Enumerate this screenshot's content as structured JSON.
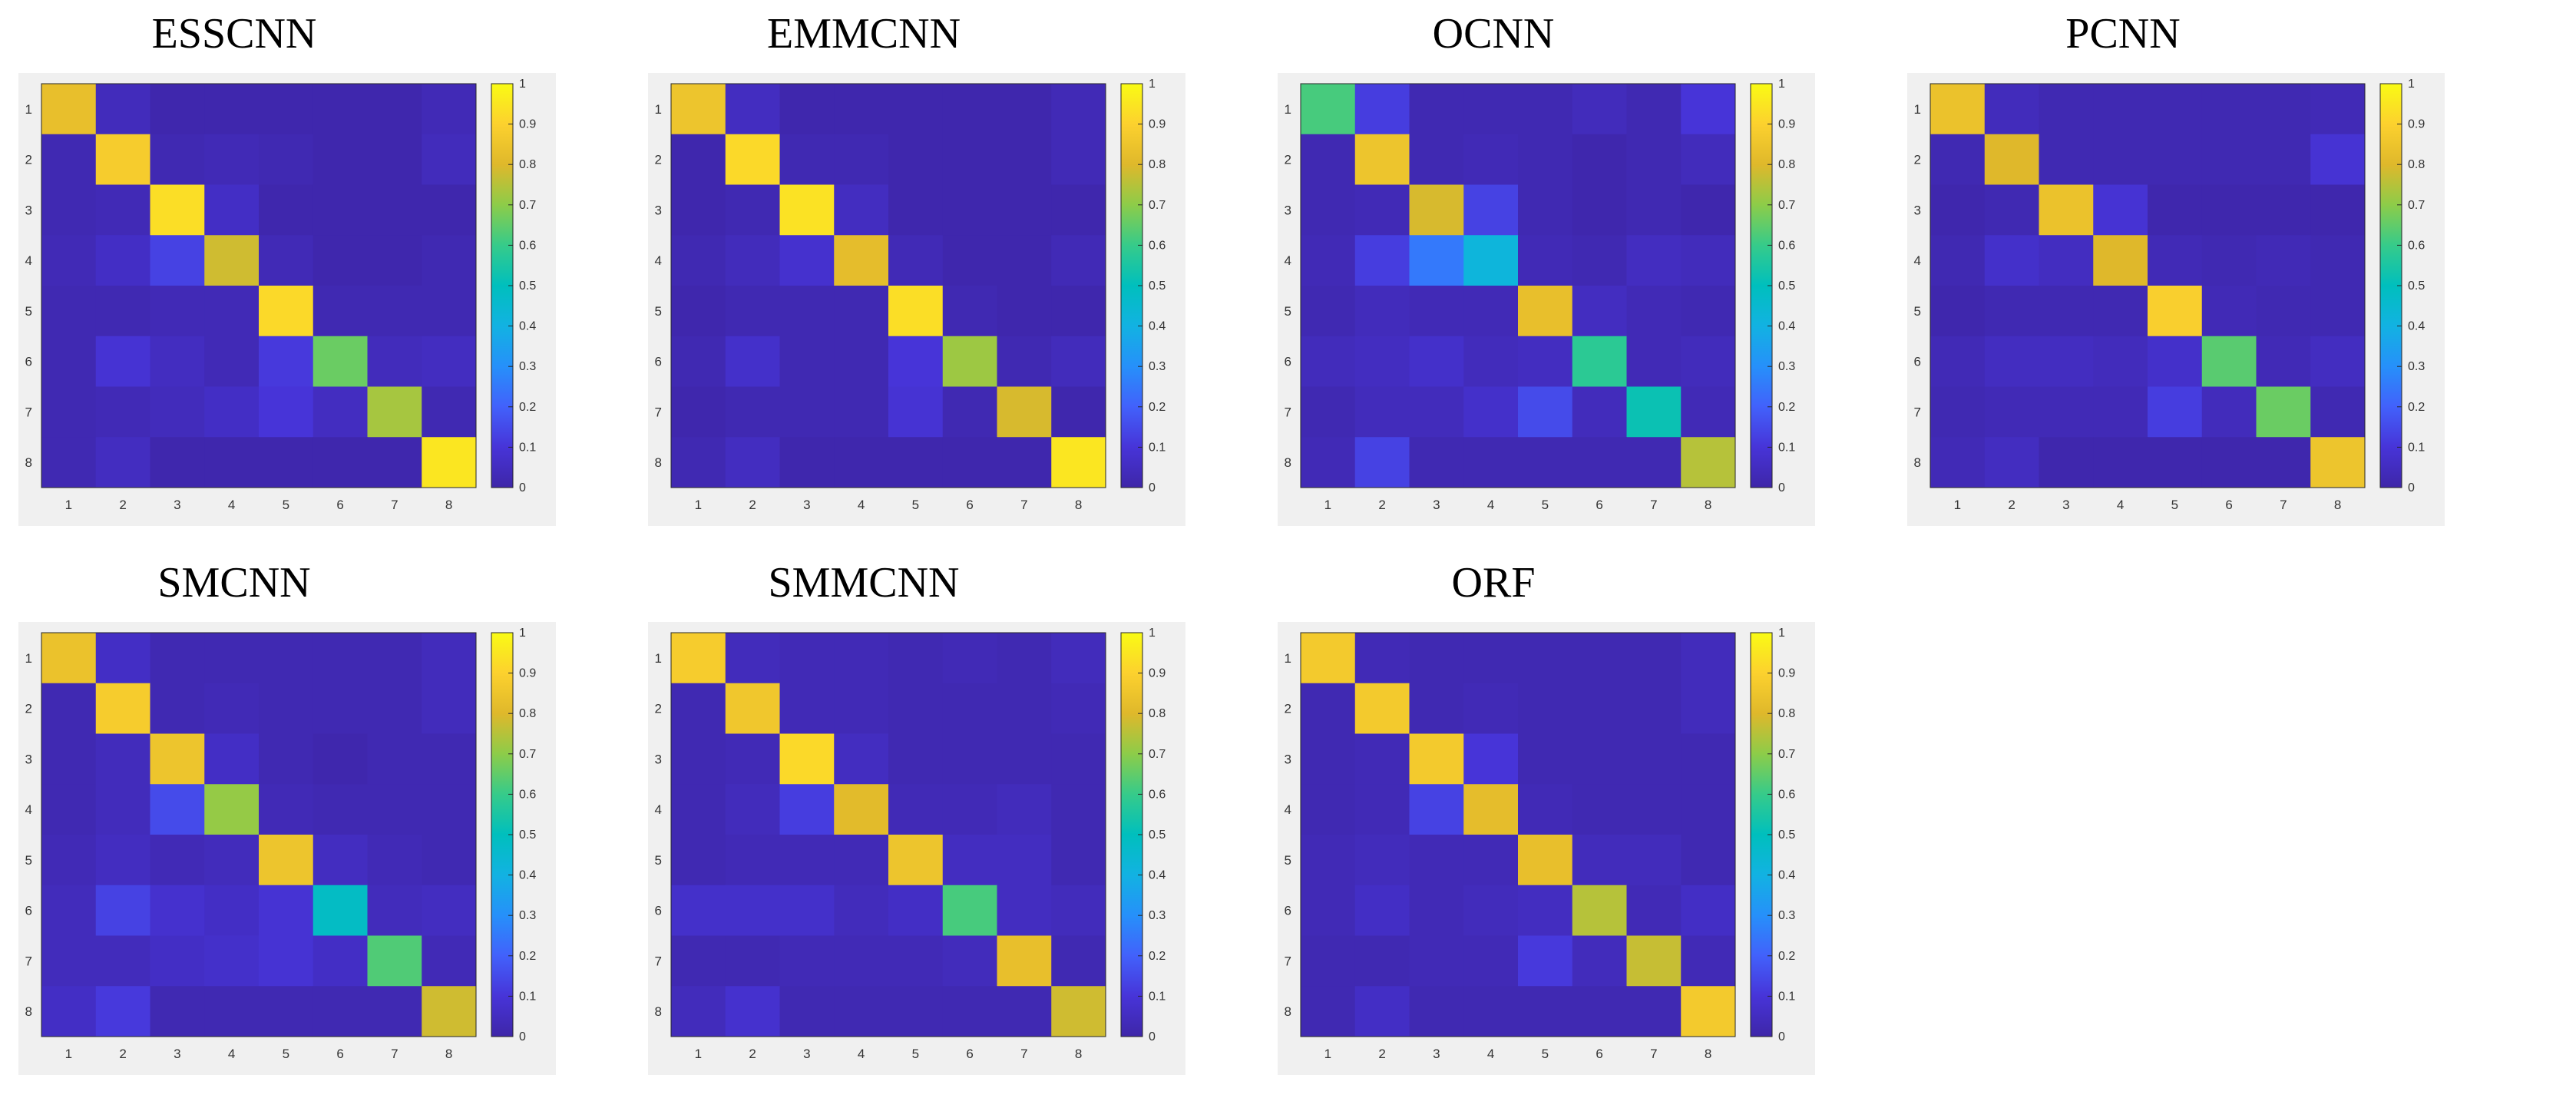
{
  "figure": {
    "layout": "2 rows x 4 columns of confusion-matrix heatmaps"
  },
  "chart_data": [
    {
      "type": "heatmap",
      "title": "ESSCNN",
      "x_tick_labels": [
        "1",
        "2",
        "3",
        "4",
        "5",
        "6",
        "7",
        "8"
      ],
      "y_tick_labels": [
        "1",
        "2",
        "3",
        "4",
        "5",
        "6",
        "7",
        "8"
      ],
      "colorbar": {
        "range": [
          0,
          1
        ],
        "ticks": [
          "0",
          "0.1",
          "0.2",
          "0.3",
          "0.4",
          "0.5",
          "0.6",
          "0.7",
          "0.8",
          "0.9",
          "1"
        ],
        "colormap": "parula"
      },
      "matrix": [
        [
          0.83,
          0.04,
          0.01,
          0.01,
          0.01,
          0.01,
          0.01,
          0.03
        ],
        [
          0.02,
          0.88,
          0.02,
          0.03,
          0.02,
          0.01,
          0.01,
          0.04
        ],
        [
          0.02,
          0.03,
          0.93,
          0.06,
          0.01,
          0.01,
          0.01,
          0.01
        ],
        [
          0.03,
          0.06,
          0.13,
          0.78,
          0.03,
          0.01,
          0.01,
          0.02
        ],
        [
          0.02,
          0.02,
          0.03,
          0.03,
          0.92,
          0.02,
          0.02,
          0.02
        ],
        [
          0.02,
          0.09,
          0.05,
          0.03,
          0.11,
          0.66,
          0.04,
          0.05
        ],
        [
          0.02,
          0.03,
          0.04,
          0.06,
          0.1,
          0.05,
          0.73,
          0.02
        ],
        [
          0.02,
          0.05,
          0.01,
          0.01,
          0.01,
          0.01,
          0.01,
          0.95
        ]
      ]
    },
    {
      "type": "heatmap",
      "title": "EMMCNN",
      "x_tick_labels": [
        "1",
        "2",
        "3",
        "4",
        "5",
        "6",
        "7",
        "8"
      ],
      "y_tick_labels": [
        "1",
        "2",
        "3",
        "4",
        "5",
        "6",
        "7",
        "8"
      ],
      "colorbar": {
        "range": [
          0,
          1
        ],
        "ticks": [
          "0",
          "0.1",
          "0.2",
          "0.3",
          "0.4",
          "0.5",
          "0.6",
          "0.7",
          "0.8",
          "0.9",
          "1"
        ],
        "colormap": "parula"
      },
      "matrix": [
        [
          0.85,
          0.05,
          0.01,
          0.01,
          0.01,
          0.01,
          0.01,
          0.03
        ],
        [
          0.01,
          0.92,
          0.02,
          0.02,
          0.01,
          0.01,
          0.01,
          0.03
        ],
        [
          0.01,
          0.02,
          0.94,
          0.05,
          0.01,
          0.01,
          0.01,
          0.01
        ],
        [
          0.02,
          0.04,
          0.08,
          0.82,
          0.03,
          0.01,
          0.01,
          0.03
        ],
        [
          0.01,
          0.02,
          0.02,
          0.02,
          0.93,
          0.02,
          0.01,
          0.01
        ],
        [
          0.02,
          0.07,
          0.02,
          0.02,
          0.1,
          0.72,
          0.02,
          0.04
        ],
        [
          0.01,
          0.02,
          0.02,
          0.02,
          0.09,
          0.02,
          0.79,
          0.01
        ],
        [
          0.02,
          0.05,
          0.01,
          0.01,
          0.01,
          0.01,
          0.01,
          0.95
        ]
      ]
    },
    {
      "type": "heatmap",
      "title": "OCNN",
      "x_tick_labels": [
        "1",
        "2",
        "3",
        "4",
        "5",
        "6",
        "7",
        "8"
      ],
      "y_tick_labels": [
        "1",
        "2",
        "3",
        "4",
        "5",
        "6",
        "7",
        "8"
      ],
      "colorbar": {
        "range": [
          0,
          1
        ],
        "ticks": [
          "0",
          "0.1",
          "0.2",
          "0.3",
          "0.4",
          "0.5",
          "0.6",
          "0.7",
          "0.8",
          "0.9",
          "1"
        ],
        "colormap": "parula"
      },
      "matrix": [
        [
          0.62,
          0.12,
          0.02,
          0.02,
          0.02,
          0.04,
          0.02,
          0.1
        ],
        [
          0.02,
          0.85,
          0.02,
          0.03,
          0.02,
          0.01,
          0.02,
          0.04
        ],
        [
          0.02,
          0.03,
          0.79,
          0.13,
          0.02,
          0.01,
          0.02,
          0.01
        ],
        [
          0.03,
          0.12,
          0.25,
          0.42,
          0.03,
          0.02,
          0.05,
          0.04
        ],
        [
          0.02,
          0.04,
          0.03,
          0.03,
          0.83,
          0.05,
          0.03,
          0.02
        ],
        [
          0.04,
          0.05,
          0.07,
          0.04,
          0.05,
          0.58,
          0.03,
          0.04
        ],
        [
          0.02,
          0.04,
          0.04,
          0.07,
          0.15,
          0.04,
          0.52,
          0.03
        ],
        [
          0.03,
          0.13,
          0.02,
          0.02,
          0.02,
          0.02,
          0.02,
          0.75
        ]
      ]
    },
    {
      "type": "heatmap",
      "title": "PCNN",
      "x_tick_labels": [
        "1",
        "2",
        "3",
        "4",
        "5",
        "6",
        "7",
        "8"
      ],
      "y_tick_labels": [
        "1",
        "2",
        "3",
        "4",
        "5",
        "6",
        "7",
        "8"
      ],
      "colorbar": {
        "range": [
          0,
          1
        ],
        "ticks": [
          "0",
          "0.1",
          "0.2",
          "0.3",
          "0.4",
          "0.5",
          "0.6",
          "0.7",
          "0.8",
          "0.9",
          "1"
        ],
        "colormap": "parula"
      },
      "matrix": [
        [
          0.84,
          0.04,
          0.02,
          0.02,
          0.02,
          0.02,
          0.02,
          0.03
        ],
        [
          0.02,
          0.8,
          0.02,
          0.02,
          0.02,
          0.02,
          0.02,
          0.09
        ],
        [
          0.01,
          0.02,
          0.84,
          0.09,
          0.01,
          0.01,
          0.01,
          0.01
        ],
        [
          0.02,
          0.07,
          0.05,
          0.8,
          0.03,
          0.02,
          0.03,
          0.02
        ],
        [
          0.01,
          0.02,
          0.02,
          0.02,
          0.89,
          0.03,
          0.02,
          0.02
        ],
        [
          0.03,
          0.05,
          0.05,
          0.04,
          0.07,
          0.64,
          0.03,
          0.05
        ],
        [
          0.02,
          0.03,
          0.03,
          0.03,
          0.12,
          0.04,
          0.66,
          0.02
        ],
        [
          0.03,
          0.05,
          0.01,
          0.01,
          0.01,
          0.01,
          0.01,
          0.85
        ]
      ]
    },
    {
      "type": "heatmap",
      "title": "SMCNN",
      "x_tick_labels": [
        "1",
        "2",
        "3",
        "4",
        "5",
        "6",
        "7",
        "8"
      ],
      "y_tick_labels": [
        "1",
        "2",
        "3",
        "4",
        "5",
        "6",
        "7",
        "8"
      ],
      "colorbar": {
        "range": [
          0,
          1
        ],
        "ticks": [
          "0",
          "0.1",
          "0.2",
          "0.3",
          "0.4",
          "0.5",
          "0.6",
          "0.7",
          "0.8",
          "0.9",
          "1"
        ],
        "colormap": "parula"
      },
      "matrix": [
        [
          0.84,
          0.06,
          0.02,
          0.02,
          0.02,
          0.02,
          0.02,
          0.04
        ],
        [
          0.02,
          0.88,
          0.02,
          0.03,
          0.02,
          0.02,
          0.02,
          0.04
        ],
        [
          0.02,
          0.04,
          0.85,
          0.06,
          0.02,
          0.01,
          0.02,
          0.02
        ],
        [
          0.02,
          0.04,
          0.15,
          0.71,
          0.03,
          0.02,
          0.02,
          0.02
        ],
        [
          0.03,
          0.05,
          0.03,
          0.04,
          0.85,
          0.05,
          0.03,
          0.02
        ],
        [
          0.04,
          0.13,
          0.08,
          0.06,
          0.09,
          0.48,
          0.04,
          0.05
        ],
        [
          0.04,
          0.04,
          0.06,
          0.07,
          0.09,
          0.06,
          0.63,
          0.03
        ],
        [
          0.06,
          0.11,
          0.02,
          0.02,
          0.02,
          0.02,
          0.02,
          0.78
        ]
      ]
    },
    {
      "type": "heatmap",
      "title": "SMMCNN",
      "x_tick_labels": [
        "1",
        "2",
        "3",
        "4",
        "5",
        "6",
        "7",
        "8"
      ],
      "y_tick_labels": [
        "1",
        "2",
        "3",
        "4",
        "5",
        "6",
        "7",
        "8"
      ],
      "colorbar": {
        "range": [
          0,
          1
        ],
        "ticks": [
          "0",
          "0.1",
          "0.2",
          "0.3",
          "0.4",
          "0.5",
          "0.6",
          "0.7",
          "0.8",
          "0.9",
          "1"
        ],
        "colormap": "parula"
      },
      "matrix": [
        [
          0.88,
          0.04,
          0.03,
          0.03,
          0.02,
          0.03,
          0.02,
          0.04
        ],
        [
          0.02,
          0.86,
          0.03,
          0.03,
          0.02,
          0.02,
          0.02,
          0.03
        ],
        [
          0.02,
          0.03,
          0.92,
          0.05,
          0.02,
          0.02,
          0.02,
          0.02
        ],
        [
          0.02,
          0.04,
          0.12,
          0.81,
          0.03,
          0.03,
          0.04,
          0.02
        ],
        [
          0.02,
          0.03,
          0.03,
          0.03,
          0.85,
          0.05,
          0.05,
          0.02
        ],
        [
          0.07,
          0.07,
          0.07,
          0.04,
          0.06,
          0.62,
          0.05,
          0.04
        ],
        [
          0.02,
          0.02,
          0.03,
          0.03,
          0.03,
          0.04,
          0.83,
          0.02
        ],
        [
          0.04,
          0.08,
          0.02,
          0.02,
          0.02,
          0.02,
          0.02,
          0.78
        ]
      ]
    },
    {
      "type": "heatmap",
      "title": "ORF",
      "x_tick_labels": [
        "1",
        "2",
        "3",
        "4",
        "5",
        "6",
        "7",
        "8"
      ],
      "y_tick_labels": [
        "1",
        "2",
        "3",
        "4",
        "5",
        "6",
        "7",
        "8"
      ],
      "colorbar": {
        "range": [
          0,
          1
        ],
        "ticks": [
          "0",
          "0.1",
          "0.2",
          "0.3",
          "0.4",
          "0.5",
          "0.6",
          "0.7",
          "0.8",
          "0.9",
          "1"
        ],
        "colormap": "parula"
      },
      "matrix": [
        [
          0.87,
          0.03,
          0.02,
          0.02,
          0.02,
          0.02,
          0.02,
          0.04
        ],
        [
          0.02,
          0.87,
          0.02,
          0.03,
          0.02,
          0.02,
          0.02,
          0.04
        ],
        [
          0.02,
          0.03,
          0.87,
          0.1,
          0.02,
          0.02,
          0.02,
          0.02
        ],
        [
          0.02,
          0.03,
          0.13,
          0.82,
          0.03,
          0.02,
          0.02,
          0.02
        ],
        [
          0.03,
          0.04,
          0.03,
          0.03,
          0.83,
          0.04,
          0.04,
          0.02
        ],
        [
          0.03,
          0.06,
          0.03,
          0.04,
          0.05,
          0.75,
          0.03,
          0.06
        ],
        [
          0.02,
          0.02,
          0.03,
          0.03,
          0.11,
          0.04,
          0.77,
          0.03
        ],
        [
          0.02,
          0.06,
          0.02,
          0.02,
          0.02,
          0.02,
          0.02,
          0.87
        ]
      ]
    }
  ]
}
